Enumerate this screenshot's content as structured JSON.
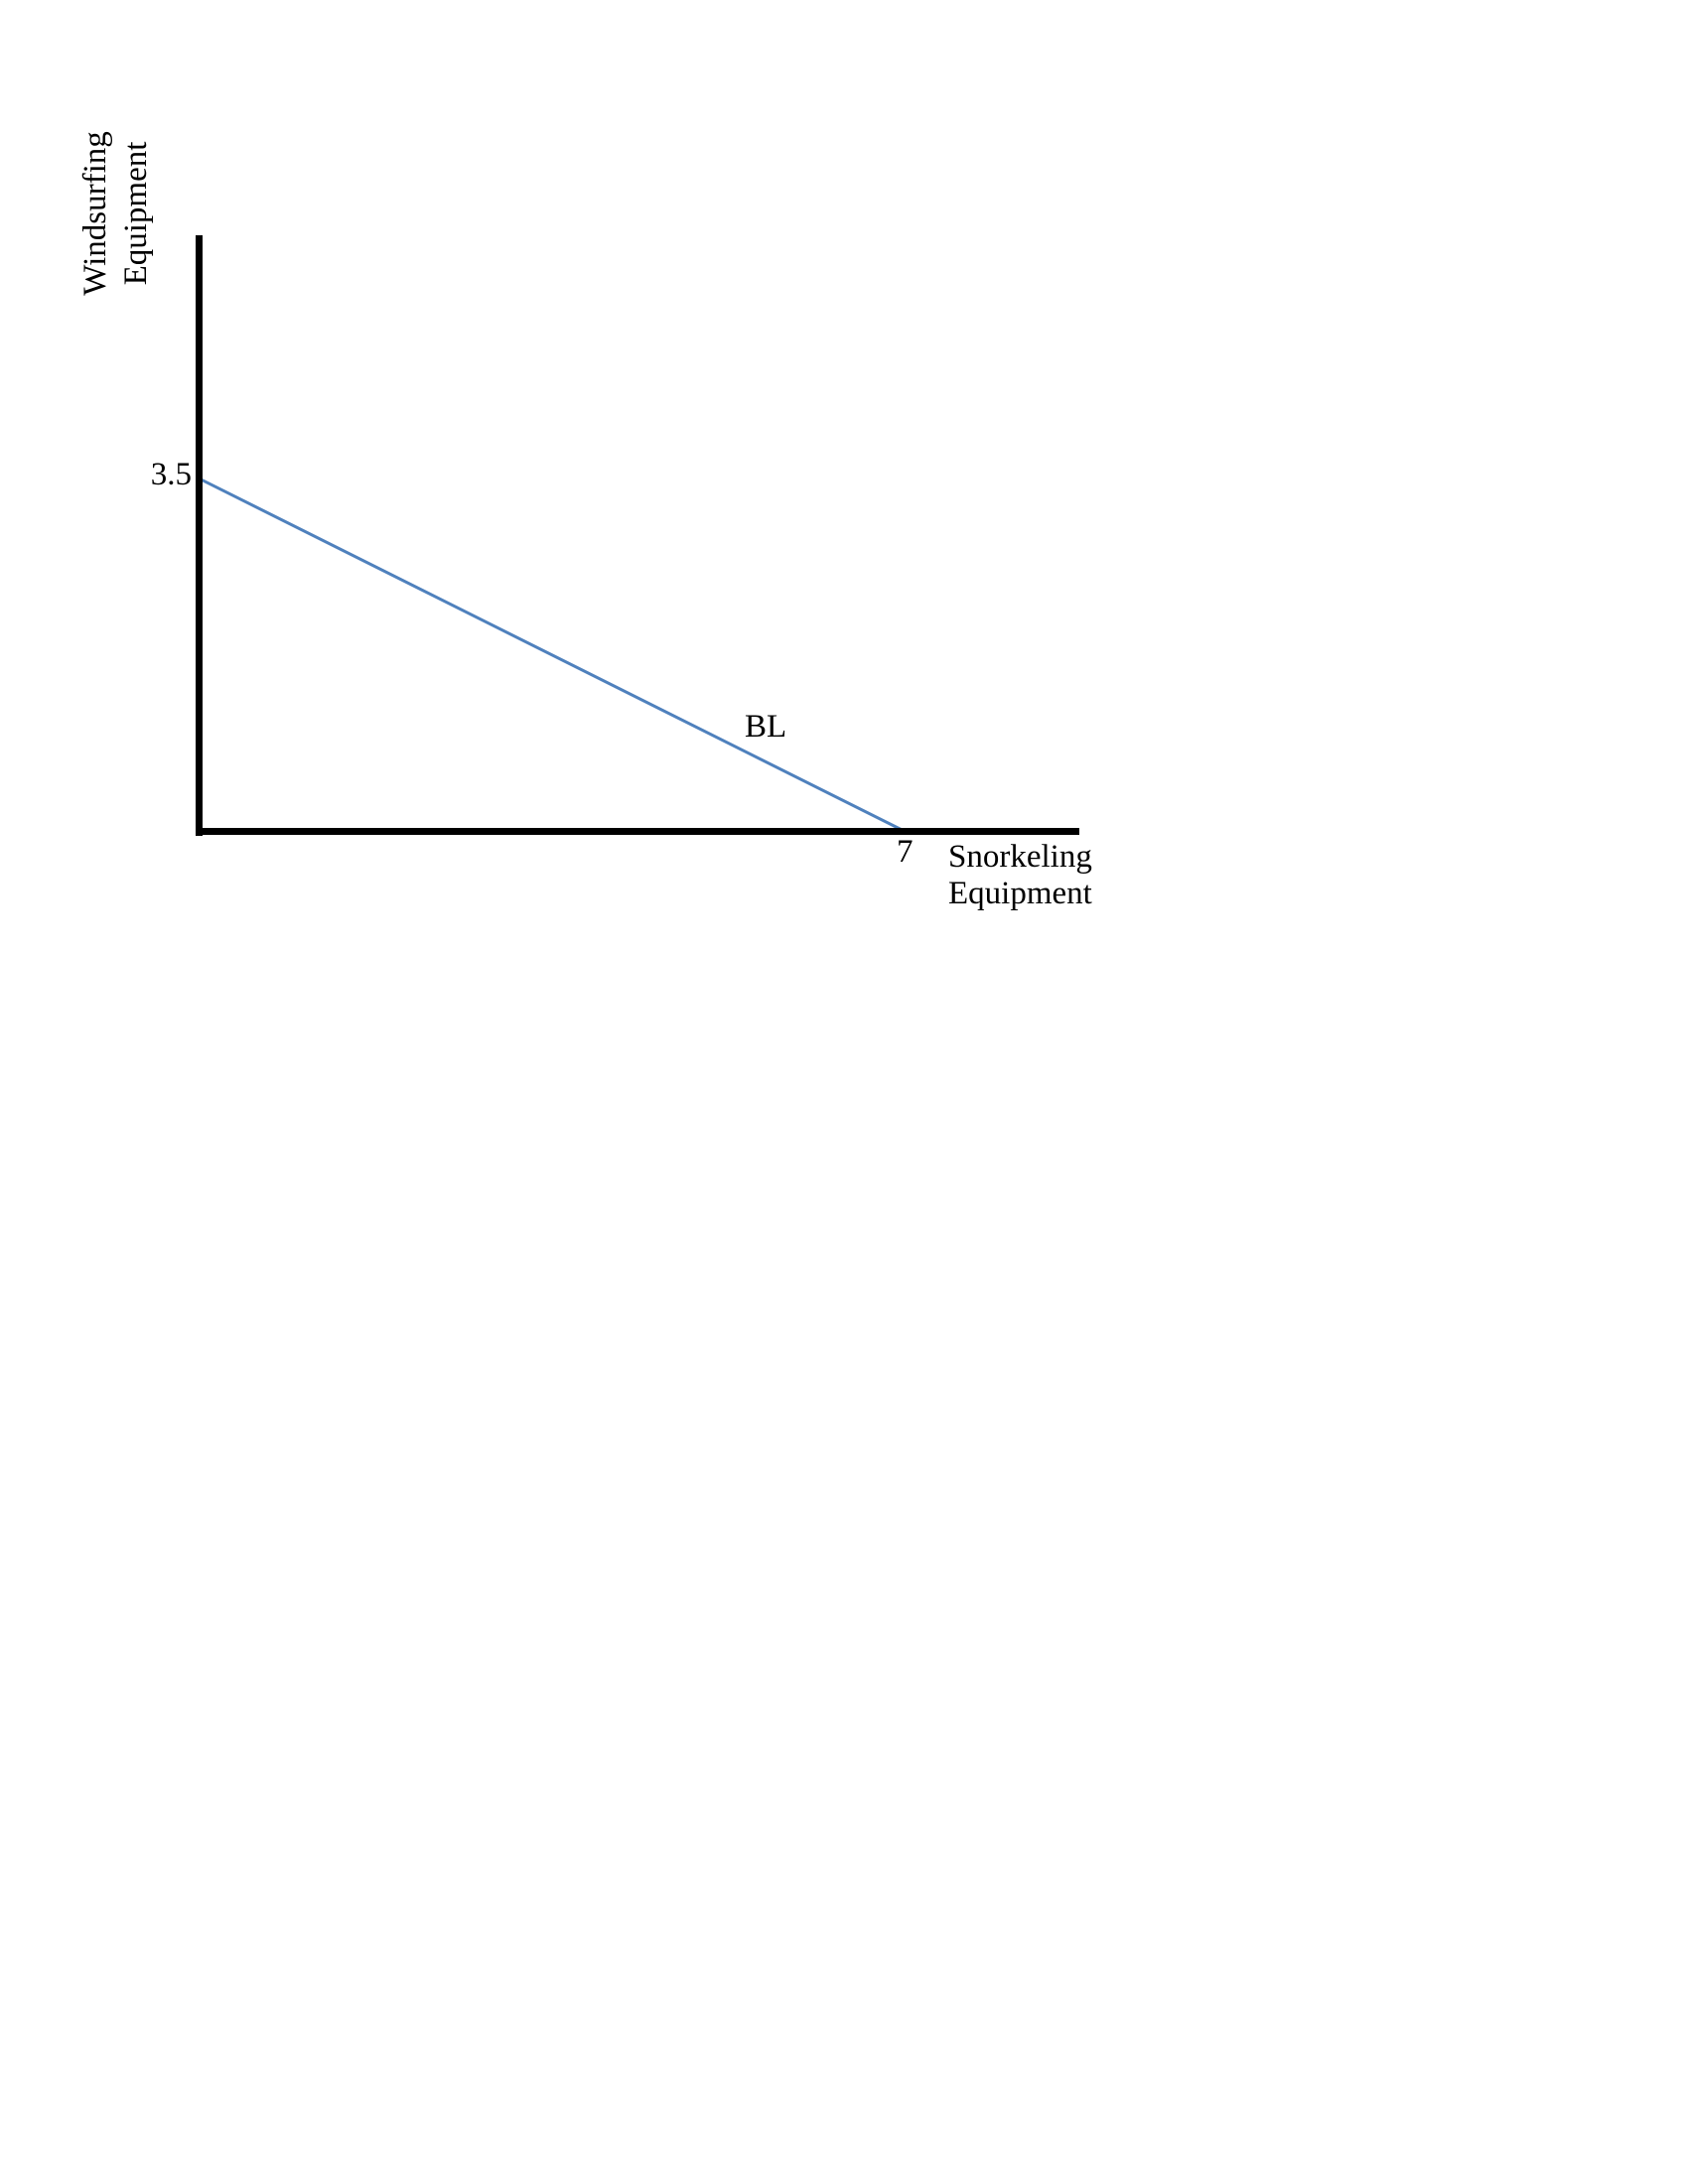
{
  "chart_data": {
    "type": "line",
    "title": "",
    "xlabel": "Snorkeling Equipment",
    "ylabel": "Windsurfing Equipment",
    "series": [
      {
        "name": "BL",
        "points": [
          {
            "x": 0,
            "y": 3.5
          },
          {
            "x": 7,
            "y": 0
          }
        ],
        "color": "#4F81BD"
      }
    ],
    "x_intercept": 7,
    "y_intercept": 3.5,
    "xlim": [
      0,
      8.8
    ],
    "ylim": [
      0,
      5.9
    ],
    "grid": false,
    "legend_position": "none",
    "annotations": [
      {
        "text": "BL",
        "near": {
          "x": 5.5,
          "y": 1.1
        }
      }
    ]
  },
  "labels": {
    "y_axis_line1": "Windsurfing",
    "y_axis_line2": "Equipment",
    "x_axis_line1": "Snorkeling",
    "x_axis_line2": "Equipment",
    "y_intercept": "3.5",
    "x_intercept": "7",
    "line_label": "BL"
  },
  "colors": {
    "line": "#4F81BD",
    "axis": "#000000",
    "text": "#000000",
    "background": "#FFFFFF"
  }
}
